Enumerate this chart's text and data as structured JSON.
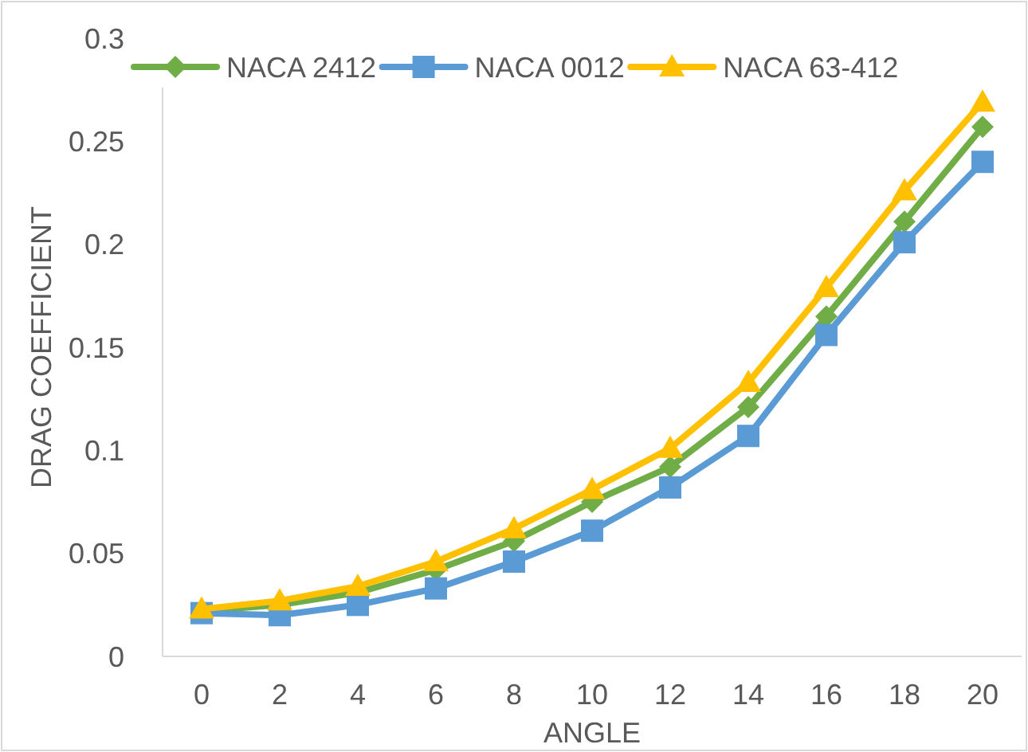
{
  "chart_data": {
    "type": "line",
    "xlabel": "ANGLE",
    "ylabel": "DRAG COEFFICIENT",
    "categories": [
      "0",
      "2",
      "4",
      "6",
      "8",
      "10",
      "12",
      "14",
      "16",
      "18",
      "20"
    ],
    "series": [
      {
        "name": "NACA 2412",
        "color": "#70ad47",
        "marker": "diamond",
        "values": [
          0.022,
          0.025,
          0.031,
          0.042,
          0.056,
          0.075,
          0.092,
          0.121,
          0.165,
          0.211,
          0.257
        ]
      },
      {
        "name": "NACA 0012",
        "color": "#5b9bd5",
        "marker": "square",
        "values": [
          0.021,
          0.02,
          0.025,
          0.033,
          0.046,
          0.061,
          0.082,
          0.107,
          0.156,
          0.201,
          0.24
        ]
      },
      {
        "name": "NACA 63-412",
        "color": "#ffc000",
        "marker": "triangle",
        "values": [
          0.023,
          0.027,
          0.034,
          0.046,
          0.062,
          0.081,
          0.101,
          0.133,
          0.179,
          0.226,
          0.269
        ]
      }
    ],
    "ylim": [
      0,
      0.3
    ],
    "yticks": [
      0,
      0.05,
      0.1,
      0.15,
      0.2,
      0.25,
      0.3
    ],
    "grid": false,
    "legend": "top"
  }
}
